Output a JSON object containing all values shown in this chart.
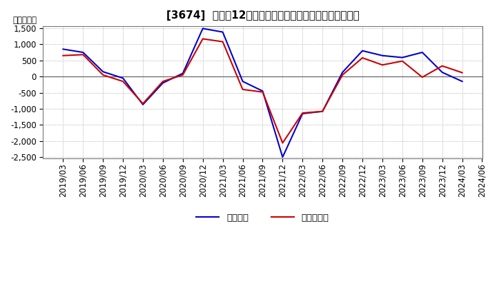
{
  "title": "[3674]  利益の12か月移動合計の対前年同期増減額の推移",
  "ylabel": "（百万円）",
  "xlabels": [
    "2019/03",
    "2019/06",
    "2019/09",
    "2019/12",
    "2020/03",
    "2020/06",
    "2020/09",
    "2020/12",
    "2021/03",
    "2021/06",
    "2021/09",
    "2021/12",
    "2022/03",
    "2022/06",
    "2022/09",
    "2022/12",
    "2023/03",
    "2023/06",
    "2023/09",
    "2023/12",
    "2024/03",
    "2024/06"
  ],
  "keijo_rieki": [
    850,
    750,
    150,
    -50,
    -870,
    -200,
    100,
    1490,
    1380,
    -150,
    -450,
    -2500,
    -1150,
    -1080,
    130,
    800,
    650,
    590,
    750,
    130,
    -150,
    null
  ],
  "touki_jun_rieki": [
    650,
    680,
    50,
    -150,
    -840,
    -150,
    50,
    1170,
    1080,
    -400,
    -480,
    -2060,
    -1130,
    -1080,
    50,
    580,
    360,
    480,
    -20,
    330,
    120,
    null
  ],
  "keijo_color": "#0000cc",
  "touki_color": "#cc0000",
  "bg_color": "#ffffff",
  "plot_bg_color": "#ffffff",
  "grid_color": "#999999",
  "ylim_min": -2500,
  "ylim_max": 1500,
  "yticks": [
    -2500,
    -2000,
    -1500,
    -1000,
    -500,
    0,
    500,
    1000,
    1500
  ],
  "legend_keijo": "経常利益",
  "legend_touki": "当期純利益",
  "title_fontsize": 11,
  "axis_fontsize": 8.5,
  "legend_fontsize": 9.5
}
